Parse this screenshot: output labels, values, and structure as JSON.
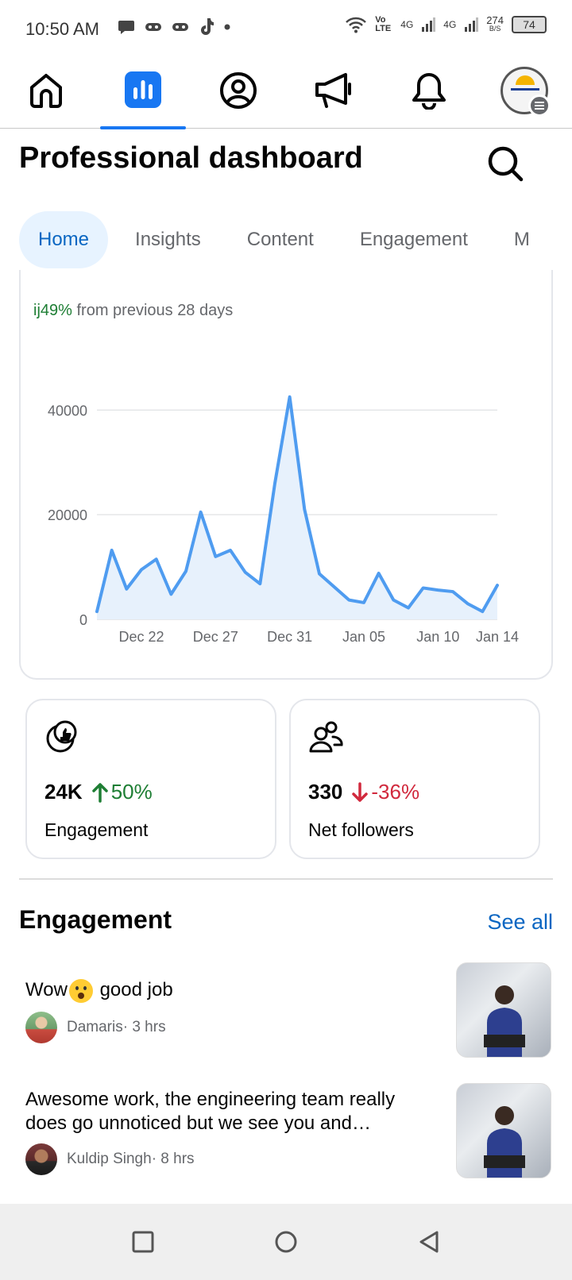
{
  "status_bar": {
    "time": "10:50 AM",
    "network_label": "Vo LTE",
    "signal1": "4G",
    "signal2": "4G",
    "speed": "274",
    "speed_unit": "B/S",
    "battery": "74"
  },
  "nav": {
    "items": [
      {
        "name": "home",
        "icon": "home-icon"
      },
      {
        "name": "dashboard",
        "icon": "bar-chart-icon",
        "active": true
      },
      {
        "name": "profile",
        "icon": "profile-icon"
      },
      {
        "name": "ads",
        "icon": "megaphone-icon"
      },
      {
        "name": "notifications",
        "icon": "bell-icon"
      },
      {
        "name": "menu",
        "icon": "avatar-menu-icon"
      }
    ]
  },
  "header": {
    "title": "Professional dashboard"
  },
  "tabs": [
    {
      "label": "Home",
      "active": true
    },
    {
      "label": "Insights"
    },
    {
      "label": "Content"
    },
    {
      "label": "Engagement"
    },
    {
      "label": "M"
    }
  ],
  "chart_card": {
    "change_pct": "ij49%",
    "change_text": " from previous 28 days"
  },
  "chart_data": {
    "type": "area",
    "x_tick_labels": [
      "Dec 22",
      "Dec 27",
      "Dec 31",
      "Jan 05",
      "Jan 10",
      "Jan 14"
    ],
    "y_tick_labels": [
      "0",
      "20000",
      "40000"
    ],
    "ylim": [
      0,
      44000
    ],
    "grid": true,
    "values": [
      1500,
      13200,
      5800,
      9500,
      11500,
      4800,
      9200,
      20500,
      12000,
      13200,
      9000,
      6800,
      26000,
      42500,
      21000,
      8700,
      6200,
      3700,
      3200,
      8800,
      3700,
      2200,
      6000,
      5600,
      5300,
      3000,
      1500,
      6500
    ],
    "color": "#4f9cf0",
    "fill": "#e7f1fc"
  },
  "stats": [
    {
      "value": "24K",
      "change": "50%",
      "direction": "up",
      "label": "Engagement",
      "icon": "thumbs-up-badge-icon"
    },
    {
      "value": "330",
      "change": "-36%",
      "direction": "down",
      "label": "Net followers",
      "icon": "followers-icon"
    }
  ],
  "engagement": {
    "title": "Engagement",
    "see_all": "See all",
    "items": [
      {
        "comment_before": "Wow",
        "comment_after": " good job",
        "author": "Damaris",
        "time": " · 3 hrs"
      },
      {
        "comment": "Awesome work, the engineering team really does go unnoticed but we see you and…",
        "author": "Kuldip Singh",
        "time": " · 8 hrs"
      }
    ]
  }
}
